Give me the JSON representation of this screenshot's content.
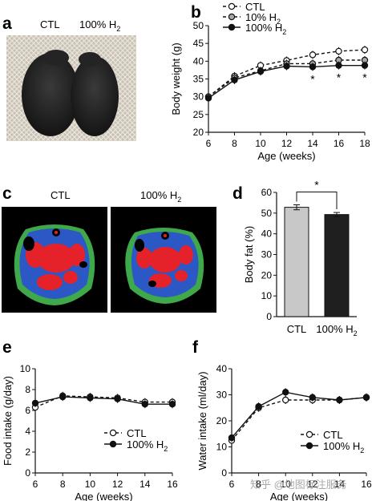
{
  "panels": {
    "a": {
      "letter": "a",
      "labels": [
        "CTL",
        "100% H",
        "2"
      ]
    },
    "c": {
      "letter": "c",
      "labels": [
        "CTL",
        "100% H",
        "2"
      ]
    }
  },
  "chart_data": [
    {
      "panel": "b",
      "type": "line",
      "x": [
        6,
        8,
        10,
        12,
        14,
        16,
        18
      ],
      "xlabel": "Age (weeks)",
      "ylabel": "Body weight (g)",
      "xlim": [
        6,
        18
      ],
      "ylim": [
        20,
        50
      ],
      "xticks": [
        "6",
        "8",
        "10",
        "12",
        "14",
        "16",
        "18"
      ],
      "yticks": [
        "20",
        "25",
        "30",
        "35",
        "40",
        "45",
        "50"
      ],
      "series": [
        {
          "name": "CTL",
          "marker": "open-circle",
          "dash": true,
          "values": [
            30,
            35.8,
            38.8,
            40.2,
            41.8,
            42.8,
            43.2
          ]
        },
        {
          "name": "10% H2",
          "marker": "gray-circle",
          "dash": true,
          "values": [
            30,
            35.3,
            37.3,
            39.3,
            39.3,
            40.3,
            40.3
          ]
        },
        {
          "name": "100% H2",
          "marker": "filled-circle",
          "dash": false,
          "values": [
            29.6,
            34.7,
            37.1,
            38.6,
            38.4,
            38.8,
            38.8
          ]
        }
      ],
      "annotations": {
        "significance": [
          "*",
          "*",
          "*"
        ],
        "at_x": [
          14,
          16,
          18
        ]
      },
      "legend": "top-left"
    },
    {
      "panel": "d",
      "type": "bar",
      "categories": [
        "CTL",
        "100% H2"
      ],
      "values": [
        52.8,
        49.3
      ],
      "errors": [
        1.2,
        1.0
      ],
      "colors": [
        "#c8c8c8",
        "#1f1f1f"
      ],
      "ylabel": "Body fat (%)",
      "ylim": [
        0,
        60
      ],
      "yticks": [
        "0",
        "10",
        "20",
        "30",
        "40",
        "50",
        "60"
      ],
      "annotations": [
        "*"
      ]
    },
    {
      "panel": "e",
      "type": "line",
      "x": [
        6,
        8,
        10,
        12,
        14,
        16
      ],
      "xlabel": "Age (weeks)",
      "ylabel": "Food intake (g/day)",
      "xlim": [
        6,
        16
      ],
      "ylim": [
        0,
        10
      ],
      "xticks": [
        "6",
        "8",
        "10",
        "12",
        "14",
        "16"
      ],
      "yticks": [
        "0",
        "2",
        "4",
        "6",
        "8",
        "10"
      ],
      "series": [
        {
          "name": "CTL",
          "marker": "open-circle",
          "dash": true,
          "values": [
            6.3,
            7.4,
            7.3,
            7.2,
            6.8,
            6.8
          ]
        },
        {
          "name": "100% H2",
          "marker": "filled-circle",
          "dash": false,
          "values": [
            6.7,
            7.3,
            7.2,
            7.1,
            6.6,
            6.6
          ]
        }
      ],
      "legend": "bottom-right"
    },
    {
      "panel": "f",
      "type": "line",
      "x": [
        6,
        8,
        10,
        12,
        14,
        16
      ],
      "xlabel": "Age (weeks)",
      "ylabel": "Water intake (ml/day)",
      "xlim": [
        6,
        16
      ],
      "ylim": [
        0,
        40
      ],
      "xticks": [
        "6",
        "8",
        "10",
        "12",
        "14",
        "16"
      ],
      "yticks": [
        "0",
        "10",
        "20",
        "30",
        "40"
      ],
      "series": [
        {
          "name": "CTL",
          "marker": "open-circle",
          "dash": true,
          "values": [
            12.5,
            25,
            28,
            28,
            28,
            29
          ]
        },
        {
          "name": "100% H2",
          "marker": "filled-circle",
          "dash": false,
          "values": [
            13.5,
            25.5,
            31,
            29,
            28,
            29
          ]
        }
      ],
      "legend": "bottom-right"
    }
  ],
  "watermark": "知乎 @地图标注服务"
}
